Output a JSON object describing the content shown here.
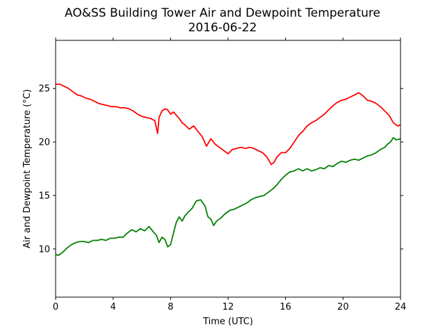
{
  "chart_data": {
    "type": "line",
    "title": "AO&SS Building Tower Air and Dewpoint Temperature",
    "subtitle": "2016-06-22",
    "xlabel": "Time (UTC)",
    "ylabel": "Air and Dewpoint Temperature (°C)",
    "xlim": [
      0,
      24
    ],
    "ylim": [
      5.5,
      29.5
    ],
    "xticks": [
      0,
      4,
      8,
      12,
      16,
      20,
      24
    ],
    "yticks": [
      10,
      15,
      20,
      25
    ],
    "grid": false,
    "legend": "none",
    "series": [
      {
        "color": "#ff0000",
        "x": [
          0,
          0.3,
          0.6,
          0.9,
          1.2,
          1.5,
          1.8,
          2.1,
          2.4,
          2.7,
          3.0,
          3.3,
          3.6,
          3.9,
          4.2,
          4.5,
          4.8,
          5.1,
          5.4,
          5.7,
          6.0,
          6.3,
          6.6,
          6.9,
          7.1,
          7.2,
          7.4,
          7.6,
          7.8,
          8.0,
          8.2,
          8.4,
          8.6,
          8.8,
          9.0,
          9.3,
          9.6,
          9.9,
          10.2,
          10.5,
          10.8,
          11.1,
          11.4,
          11.7,
          12.0,
          12.3,
          12.6,
          12.9,
          13.2,
          13.5,
          13.8,
          14.1,
          14.4,
          14.7,
          15.0,
          15.2,
          15.4,
          15.7,
          16.0,
          16.3,
          16.6,
          16.9,
          17.2,
          17.5,
          17.8,
          18.1,
          18.4,
          18.7,
          19.0,
          19.3,
          19.6,
          19.9,
          20.2,
          20.5,
          20.8,
          21.1,
          21.4,
          21.7,
          22.0,
          22.3,
          22.6,
          22.9,
          23.2,
          23.5,
          23.8,
          24.0
        ],
        "y": [
          25.4,
          25.4,
          25.2,
          25.0,
          24.7,
          24.4,
          24.3,
          24.1,
          24.0,
          23.8,
          23.6,
          23.5,
          23.4,
          23.3,
          23.3,
          23.2,
          23.2,
          23.1,
          22.9,
          22.6,
          22.4,
          22.3,
          22.2,
          22.0,
          20.8,
          22.3,
          22.9,
          23.1,
          23.0,
          22.6,
          22.8,
          22.5,
          22.2,
          21.8,
          21.6,
          21.2,
          21.5,
          21.0,
          20.5,
          19.6,
          20.3,
          19.8,
          19.5,
          19.2,
          18.9,
          19.3,
          19.4,
          19.5,
          19.4,
          19.5,
          19.4,
          19.2,
          19.0,
          18.6,
          17.9,
          18.1,
          18.6,
          19.0,
          19.0,
          19.4,
          20.0,
          20.6,
          21.0,
          21.5,
          21.8,
          22.0,
          22.3,
          22.6,
          23.0,
          23.4,
          23.7,
          23.9,
          24.0,
          24.2,
          24.4,
          24.6,
          24.3,
          23.9,
          23.8,
          23.6,
          23.3,
          22.9,
          22.5,
          21.8,
          21.5,
          21.6
        ]
      },
      {
        "color": "#008000",
        "x": [
          0,
          0.2,
          0.5,
          0.8,
          1.1,
          1.4,
          1.7,
          2.0,
          2.3,
          2.6,
          2.9,
          3.2,
          3.5,
          3.8,
          4.1,
          4.4,
          4.7,
          5.0,
          5.3,
          5.6,
          5.9,
          6.2,
          6.5,
          6.8,
          7.0,
          7.2,
          7.4,
          7.6,
          7.8,
          8.0,
          8.2,
          8.4,
          8.6,
          8.8,
          9.0,
          9.2,
          9.5,
          9.8,
          10.1,
          10.4,
          10.6,
          10.8,
          11.0,
          11.2,
          11.5,
          11.8,
          12.1,
          12.4,
          12.7,
          13.0,
          13.3,
          13.6,
          13.9,
          14.2,
          14.5,
          14.8,
          15.1,
          15.4,
          15.7,
          16.0,
          16.3,
          16.6,
          16.9,
          17.2,
          17.5,
          17.8,
          18.1,
          18.4,
          18.7,
          19.0,
          19.3,
          19.6,
          19.9,
          20.2,
          20.5,
          20.8,
          21.1,
          21.4,
          21.7,
          22.0,
          22.3,
          22.6,
          22.9,
          23.1,
          23.3,
          23.5,
          23.7,
          24.0
        ],
        "y": [
          9.5,
          9.4,
          9.7,
          10.1,
          10.4,
          10.6,
          10.7,
          10.7,
          10.6,
          10.8,
          10.8,
          10.9,
          10.8,
          11.0,
          11.0,
          11.1,
          11.1,
          11.5,
          11.8,
          11.6,
          11.9,
          11.7,
          12.1,
          11.6,
          11.3,
          10.6,
          11.1,
          10.9,
          10.2,
          10.4,
          11.5,
          12.5,
          13.0,
          12.6,
          13.1,
          13.4,
          13.8,
          14.5,
          14.6,
          14.0,
          13.0,
          12.8,
          12.2,
          12.6,
          12.9,
          13.3,
          13.6,
          13.7,
          13.9,
          14.1,
          14.3,
          14.6,
          14.8,
          14.9,
          15.0,
          15.3,
          15.6,
          16.0,
          16.5,
          16.9,
          17.2,
          17.3,
          17.5,
          17.3,
          17.5,
          17.3,
          17.4,
          17.6,
          17.5,
          17.8,
          17.7,
          18.0,
          18.2,
          18.1,
          18.3,
          18.4,
          18.3,
          18.5,
          18.7,
          18.8,
          19.0,
          19.3,
          19.5,
          19.8,
          20.0,
          20.4,
          20.2,
          20.3
        ]
      }
    ]
  }
}
